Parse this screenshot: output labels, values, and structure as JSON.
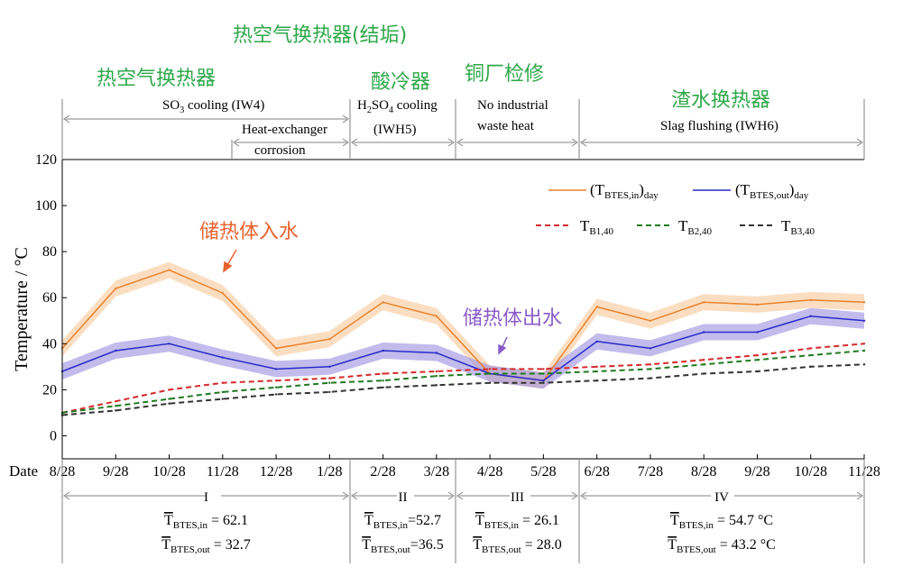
{
  "chart_data": {
    "type": "line",
    "ylabel": "Temperature / °C",
    "ylim": [
      -10,
      120
    ],
    "y_ticks": [
      "0",
      "20",
      "40",
      "60",
      "80",
      "100",
      "120"
    ],
    "x_axis_title": "Date",
    "x_ticks": [
      "8/28",
      "9/28",
      "10/28",
      "11/28",
      "12/28",
      "1/28",
      "2/28",
      "3/28",
      "4/28",
      "5/28",
      "6/28",
      "7/28",
      "8/28",
      "9/28",
      "10/28",
      "11/28"
    ],
    "grid": false,
    "legend_position": "top-right",
    "x": [
      "8/28",
      "9/28",
      "10/28",
      "11/28",
      "12/28",
      "1/28",
      "2/28",
      "3/28",
      "4/28",
      "5/28",
      "6/28",
      "7/28",
      "8/28",
      "9/28",
      "10/28",
      "11/28"
    ],
    "series": [
      {
        "name": "(TBTES,in)day",
        "color": "#E8822E",
        "band_color": "#F8C898",
        "values": [
          38,
          64,
          72,
          62,
          38,
          42,
          58,
          52,
          27,
          24,
          56,
          50,
          58,
          57,
          59,
          58
        ]
      },
      {
        "name": "(TBTES,out)day",
        "color": "#2B2BC8",
        "band_color": "#9A8EE0",
        "values": [
          28,
          37,
          40,
          34,
          29,
          30,
          37,
          36,
          27,
          24,
          41,
          38,
          45,
          45,
          52,
          50
        ]
      },
      {
        "name": "TB1,40",
        "color": "#D42A2A",
        "dashed": true,
        "values": [
          10,
          15,
          20,
          23,
          24,
          25,
          27,
          28,
          29,
          29,
          30,
          31,
          33,
          35,
          38,
          40
        ]
      },
      {
        "name": "TB2,40",
        "color": "#1F7A1F",
        "dashed": true,
        "values": [
          10,
          13,
          16,
          19,
          21,
          23,
          24,
          26,
          27,
          27,
          28,
          29,
          31,
          33,
          35,
          37
        ]
      },
      {
        "name": "TB3,40",
        "color": "#333333",
        "dashed": true,
        "values": [
          9,
          11,
          14,
          16,
          18,
          19,
          21,
          22,
          23,
          23,
          24,
          25,
          27,
          28,
          30,
          31
        ]
      }
    ],
    "legend": [
      {
        "label": "(T",
        "sub": "BTES,in",
        "tail": ")",
        "sub2": "day"
      },
      {
        "label": "(T",
        "sub": "BTES,out",
        "tail": ")",
        "sub2": "day"
      },
      {
        "label": "T",
        "sub": "B1,40"
      },
      {
        "label": "T",
        "sub": "B2,40"
      },
      {
        "label": "T",
        "sub": "B3,40"
      }
    ],
    "annotations": {
      "inlet": "储热体入水",
      "outlet": "储热体出水"
    },
    "top_phases": {
      "zh_fouling": "热空气换热器(结垢)",
      "zh_air": "热空气换热器",
      "zh_acid": "酸冷器",
      "zh_copper": "铜厂检修",
      "zh_slag": "渣水换热器",
      "so3": "SO3 cooling (IW4)",
      "so3_main": "SO",
      "so3_sub": "3",
      "so3_tail": " cooling (IW4)",
      "hx1": "Heat-exchanger",
      "hx2": "corrosion",
      "h2so4_a": "H",
      "h2so4_b": "2",
      "h2so4_c": "SO",
      "h2so4_d": "4",
      "h2so4_e": " cooling",
      "iwh5": "(IWH5)",
      "noind1": "No industrial",
      "noind2": "waste heat",
      "slag": "Slag flushing (IWH6)"
    },
    "bottom_periods": [
      {
        "label": "I",
        "in_label": "T",
        "in_sub": "BTES,in",
        "in_value": " = 62.1",
        "out_label": "T",
        "out_sub": "BTES,out",
        "out_value": " = 32.7"
      },
      {
        "label": "II",
        "in_label": "T",
        "in_sub": "BTES,in",
        "in_value": "=52.7",
        "out_label": "T",
        "out_sub": "BTES,out",
        "out_value": "=36.5"
      },
      {
        "label": "III",
        "in_label": "T",
        "in_sub": "BTES,in",
        "in_value": " = 26.1",
        "out_label": "T",
        "out_sub": "BTES,out",
        "out_value": " = 28.0"
      },
      {
        "label": "IV",
        "in_label": "T",
        "in_sub": "BTES,in",
        "in_value": " = 54.7 °C",
        "out_label": "T",
        "out_sub": "BTES,out",
        "out_value": " = 43.2 °C"
      }
    ],
    "colors": {
      "axis": "#000000",
      "zh_green": "#2FA84A",
      "zh_orange": "#E8622E",
      "zh_purple": "#8A5CC8",
      "guide": "#808080"
    }
  }
}
